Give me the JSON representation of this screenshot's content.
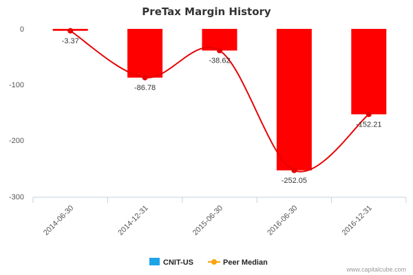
{
  "chart_data": {
    "type": "bar",
    "title": "PreTax Margin History",
    "categories": [
      "2014-06-30",
      "2014-12-31",
      "2015-06-30",
      "2016-06-30",
      "2016-12-31"
    ],
    "series": [
      {
        "name": "CNIT-US",
        "type": "bar",
        "color": "#ff0000",
        "values": [
          -3.37,
          -86.78,
          -38.62,
          -252.05,
          -152.21
        ]
      },
      {
        "name": "Peer Median",
        "type": "line",
        "color": "#e60000",
        "values": [
          -3.37,
          -86.78,
          -38.62,
          -252.05,
          -152.21
        ]
      }
    ],
    "data_labels": [
      "-3.37",
      "-86.78",
      "-38.62",
      "-252.05",
      "-152.21"
    ],
    "ylim": [
      -300,
      0
    ],
    "yticks": [
      "0",
      "-100",
      "-200",
      "-300"
    ],
    "xlabel": "",
    "ylabel": "",
    "grid": false,
    "legend": {
      "position": "bottom",
      "items": [
        {
          "label": "CNIT-US",
          "color": "#1ca3e8"
        },
        {
          "label": "Peer Median",
          "color": "#f7a30c"
        }
      ]
    }
  },
  "footer": {
    "credit": "www.capitalcube.com"
  }
}
